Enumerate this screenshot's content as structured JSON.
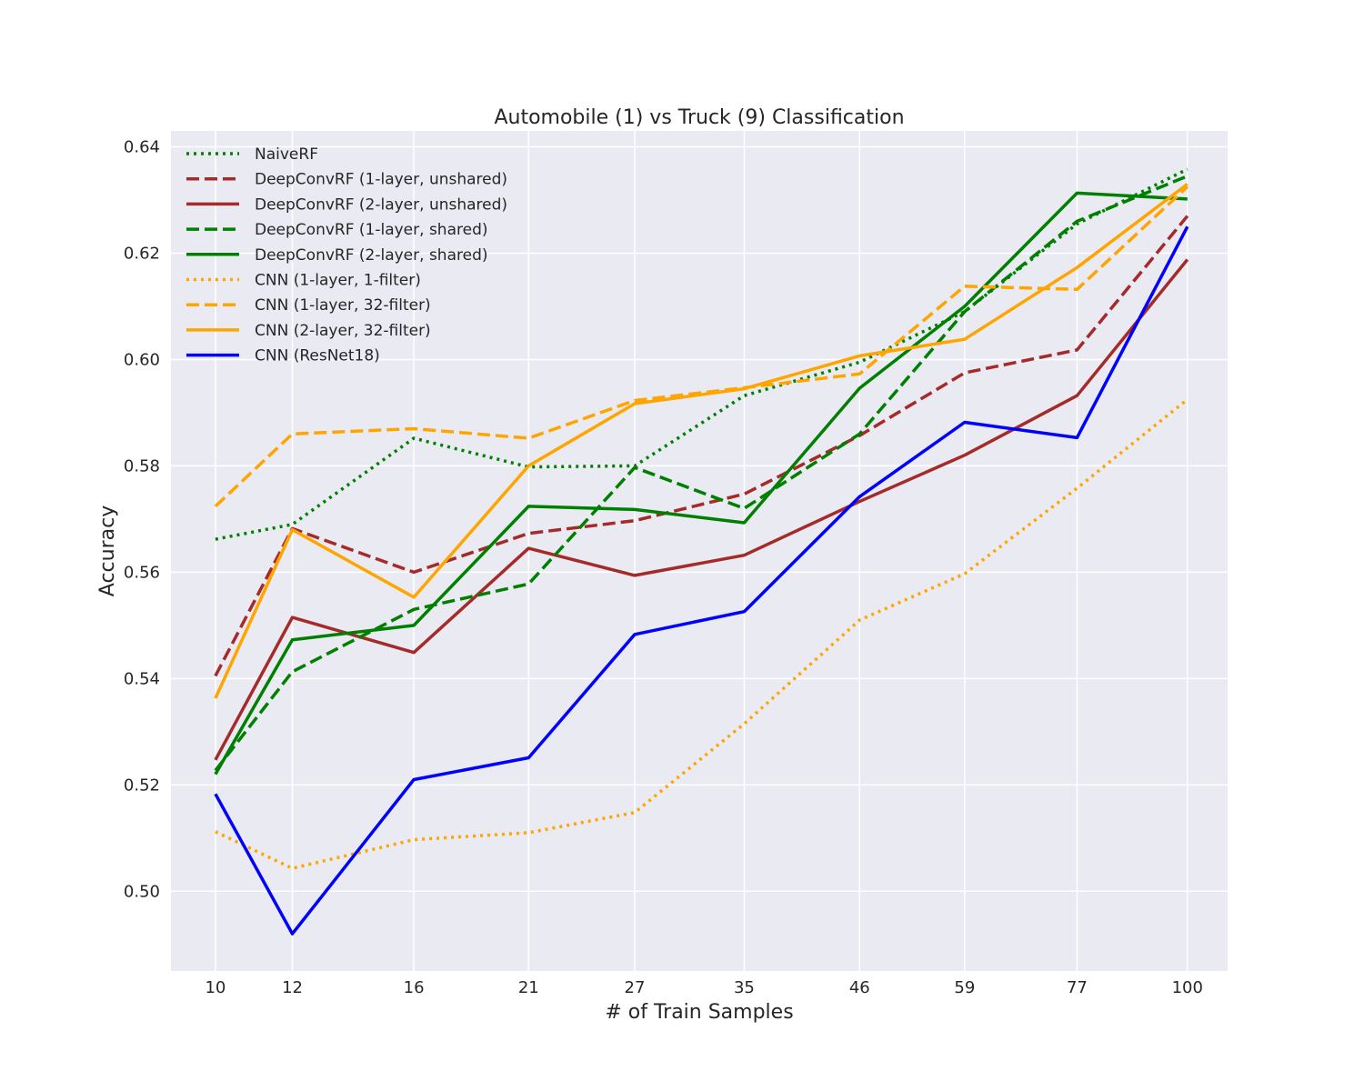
{
  "chart_data": {
    "type": "line",
    "title": "Automobile (1) vs Truck (9) Classification",
    "xlabel": "# of Train Samples",
    "ylabel": "Accuracy",
    "x": [
      10,
      12,
      16,
      21,
      27,
      35,
      46,
      59,
      77,
      100
    ],
    "x_tick_labels": [
      "10",
      "12",
      "16",
      "21",
      "27",
      "35",
      "46",
      "59",
      "77",
      "100"
    ],
    "x_scale": "log",
    "xlim": [
      9.0,
      110
    ],
    "ylim": [
      0.485,
      0.643
    ],
    "y_ticks": [
      0.5,
      0.52,
      0.54,
      0.56,
      0.58,
      0.6,
      0.62,
      0.64
    ],
    "y_tick_labels": [
      "0.50",
      "0.52",
      "0.54",
      "0.56",
      "0.58",
      "0.60",
      "0.62",
      "0.64"
    ],
    "grid": true,
    "legend_position": "top-left",
    "background_color": "#EAEAF2",
    "series": [
      {
        "name": "NaiveRF",
        "color": "#008000",
        "style": "dotted",
        "values": [
          0.5662,
          0.569,
          0.5852,
          0.5798,
          0.58,
          0.5932,
          0.5995,
          0.609,
          0.6255,
          0.6358
        ]
      },
      {
        "name": "DeepConvRF (1-layer, unshared)",
        "color": "#A52A2A",
        "style": "dashed",
        "values": [
          0.5405,
          0.5682,
          0.56,
          0.5673,
          0.5697,
          0.5747,
          0.5857,
          0.5975,
          0.6018,
          0.627
        ]
      },
      {
        "name": "DeepConvRF (2-layer, unshared)",
        "color": "#A52A2A",
        "style": "solid",
        "values": [
          0.5247,
          0.5515,
          0.5449,
          0.5645,
          0.5594,
          0.5632,
          0.5733,
          0.582,
          0.5932,
          0.6188
        ]
      },
      {
        "name": "DeepConvRF (1-layer, shared)",
        "color": "#008000",
        "style": "dashed",
        "values": [
          0.5227,
          0.5413,
          0.553,
          0.5578,
          0.5797,
          0.572,
          0.586,
          0.609,
          0.626,
          0.6345
        ]
      },
      {
        "name": "DeepConvRF (2-layer, shared)",
        "color": "#008000",
        "style": "solid",
        "values": [
          0.522,
          0.5473,
          0.55,
          0.5724,
          0.5718,
          0.5693,
          0.5946,
          0.61,
          0.6313,
          0.6302
        ]
      },
      {
        "name": "CNN (1-layer, 1-filter)",
        "color": "#FFA500",
        "style": "dotted",
        "values": [
          0.5112,
          0.5043,
          0.5097,
          0.511,
          0.5148,
          0.5315,
          0.551,
          0.5597,
          0.5758,
          0.5925
        ]
      },
      {
        "name": "CNN (1-layer, 32-filter)",
        "color": "#FFA500",
        "style": "dashed",
        "values": [
          0.5724,
          0.586,
          0.587,
          0.5852,
          0.5923,
          0.5947,
          0.5973,
          0.6138,
          0.6132,
          0.6325
        ]
      },
      {
        "name": "CNN (2-layer, 32-filter)",
        "color": "#FFA500",
        "style": "solid",
        "values": [
          0.5363,
          0.568,
          0.5553,
          0.58,
          0.5917,
          0.5945,
          0.6007,
          0.6038,
          0.6173,
          0.633
        ]
      },
      {
        "name": "CNN (ResNet18)",
        "color": "#0000FF",
        "style": "solid",
        "values": [
          0.5183,
          0.492,
          0.521,
          0.5251,
          0.5483,
          0.5526,
          0.5742,
          0.5882,
          0.5853,
          0.625
        ]
      }
    ]
  }
}
